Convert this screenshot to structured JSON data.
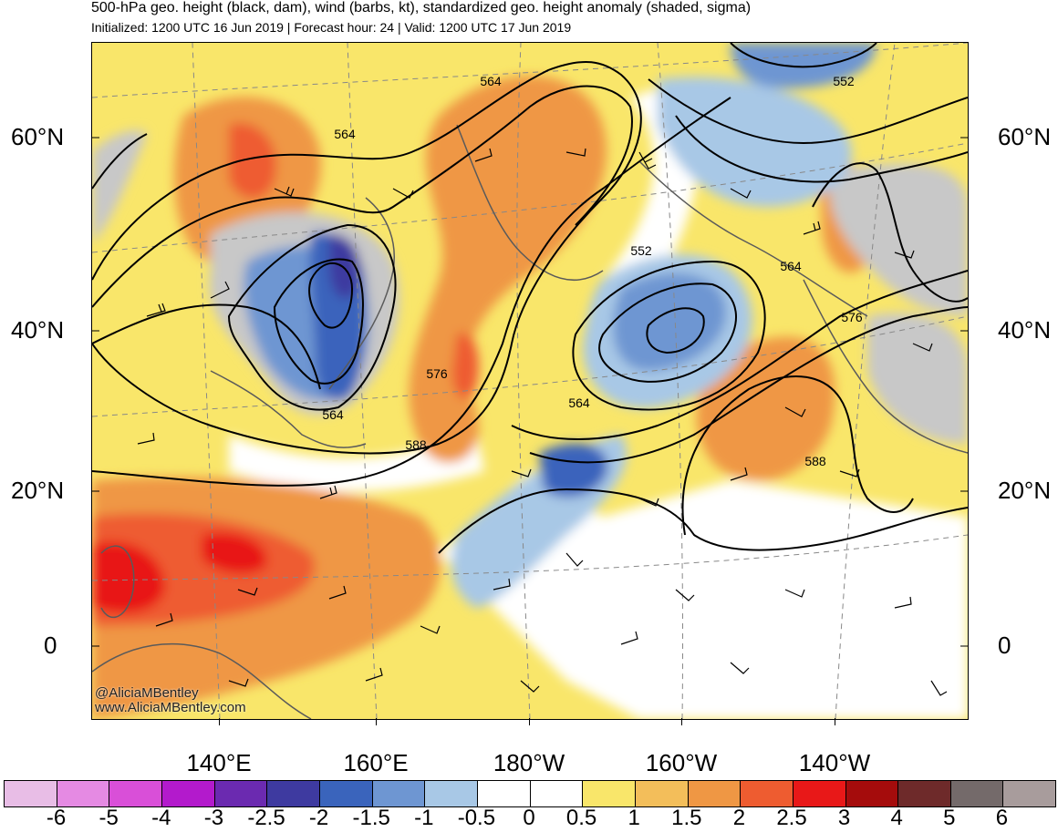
{
  "header": {
    "title": "500-hPa geo. height (black, dam), wind (barbs, kt), standardized geo. height anomaly (shaded, sigma)",
    "subtitle": "Initialized: 1200 UTC 16 Jun 2019 | Forecast hour: 24 | Valid: 1200 UTC 17 Jun 2019"
  },
  "map": {
    "lat_labels_left": [
      "60°N",
      "40°N",
      "20°N",
      "0"
    ],
    "lat_labels_right": [
      "60°N",
      "40°N",
      "20°N",
      "0"
    ],
    "lon_labels": [
      "140°E",
      "160°E",
      "180°W",
      "160°W",
      "140°W"
    ],
    "contour_labels": [
      "564",
      "564",
      "552",
      "552",
      "564",
      "576",
      "576",
      "564",
      "564",
      "588",
      "588"
    ],
    "credit_line1": "@AliciaMBentley",
    "credit_line2": "www.AliciaMBentley.com"
  },
  "colorbar": {
    "labels": [
      "-6",
      "-5",
      "-4",
      "-3",
      "-2.5",
      "-2",
      "-1.5",
      "-1",
      "-0.5",
      "0",
      "0.5",
      "1",
      "1.5",
      "2",
      "2.5",
      "3",
      "4",
      "5",
      "6"
    ],
    "colors": [
      "#e8bde6",
      "#e58ae3",
      "#d94fd8",
      "#b31acc",
      "#6b2ab0",
      "#3e3aa0",
      "#3a64bc",
      "#6e96d2",
      "#a8c8e6",
      "#ffffff",
      "#ffffff",
      "#f9e66a",
      "#f3be5a",
      "#ef9744",
      "#ee5c30",
      "#e81818",
      "#a50c0c",
      "#6e2a2a",
      "#746a6a",
      "#a89c9c"
    ]
  }
}
